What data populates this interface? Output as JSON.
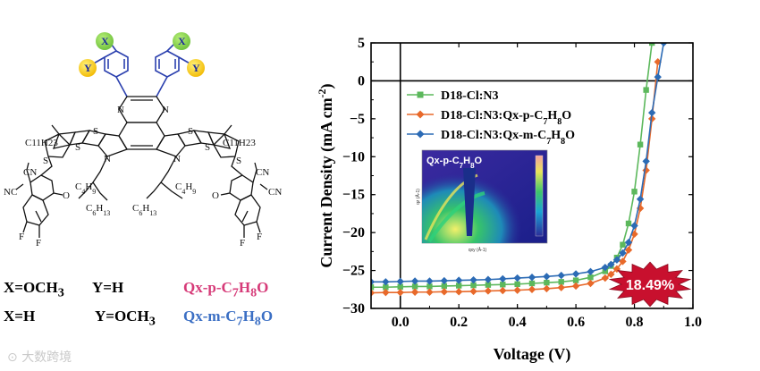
{
  "molecule": {
    "sub_X": "X",
    "sub_Y": "Y",
    "atom_N": "N",
    "atom_S": "S",
    "atom_O": "O",
    "atom_F": "F",
    "atom_CN": "CN",
    "atom_NC": "NC",
    "alkyl_C11H23": "C11H23",
    "alkyl_C4H9": "C4H9",
    "alkyl_C6H13": "C6H13"
  },
  "legend_rows": [
    {
      "x_text": "X=OCH3",
      "y_text": "Y=H",
      "name": "Qx-p-C7H8O"
    },
    {
      "x_text": "X=H",
      "y_text": "Y=OCH3",
      "name": "Qx-m-C7H8O"
    }
  ],
  "watermark": "大数跨境",
  "chart_data": {
    "type": "line",
    "title": "",
    "xlabel": "Voltage (V)",
    "ylabel": "Current Density (mA cm-2)",
    "xlim": [
      -0.1,
      1.0
    ],
    "ylim": [
      -30,
      5
    ],
    "xticks": [
      0.0,
      0.2,
      0.4,
      0.6,
      0.8,
      1.0
    ],
    "yticks": [
      5,
      0,
      -5,
      -10,
      -15,
      -20,
      -25,
      -30
    ],
    "xtick_labels": [
      "0.0",
      "0.2",
      "0.4",
      "0.6",
      "0.8",
      "1.0"
    ],
    "ytick_labels": [
      "5",
      "0",
      "−5",
      "−10",
      "−15",
      "−20",
      "−25",
      "−30"
    ],
    "reference_lines": {
      "x": 0,
      "y": 0
    },
    "legend_position": "top-left",
    "series": [
      {
        "name": "D18-Cl:N3",
        "color": "#5cb85c",
        "marker": "square",
        "x": [
          -0.1,
          -0.05,
          0.0,
          0.05,
          0.1,
          0.15,
          0.2,
          0.25,
          0.3,
          0.35,
          0.4,
          0.45,
          0.5,
          0.55,
          0.6,
          0.65,
          0.7,
          0.72,
          0.74,
          0.76,
          0.78,
          0.8,
          0.82,
          0.84,
          0.86
        ],
        "y": [
          -27.2,
          -27.2,
          -27.15,
          -27.1,
          -27.1,
          -27.05,
          -27.0,
          -26.95,
          -26.9,
          -26.85,
          -26.8,
          -26.7,
          -26.6,
          -26.5,
          -26.3,
          -25.9,
          -25.1,
          -24.4,
          -23.3,
          -21.6,
          -18.8,
          -14.6,
          -8.4,
          -1.2,
          6.0
        ]
      },
      {
        "name": "D18-Cl:N3:Qx-p-C7H8O",
        "color": "#e8692a",
        "marker": "diamond",
        "x": [
          -0.1,
          -0.05,
          0.0,
          0.05,
          0.1,
          0.15,
          0.2,
          0.25,
          0.3,
          0.35,
          0.4,
          0.45,
          0.5,
          0.55,
          0.6,
          0.65,
          0.7,
          0.72,
          0.74,
          0.76,
          0.78,
          0.8,
          0.82,
          0.84,
          0.86,
          0.88
        ],
        "y": [
          -27.95,
          -27.9,
          -27.9,
          -27.85,
          -27.85,
          -27.8,
          -27.8,
          -27.75,
          -27.7,
          -27.65,
          -27.6,
          -27.5,
          -27.4,
          -27.25,
          -27.05,
          -26.7,
          -26.0,
          -25.5,
          -24.8,
          -23.8,
          -22.3,
          -20.2,
          -16.8,
          -11.8,
          -5.0,
          2.5
        ]
      },
      {
        "name": "D18-Cl:N3:Qx-m-C7H8O",
        "color": "#2c6bb5",
        "marker": "diamond",
        "x": [
          -0.1,
          -0.05,
          0.0,
          0.05,
          0.1,
          0.15,
          0.2,
          0.25,
          0.3,
          0.35,
          0.4,
          0.45,
          0.5,
          0.55,
          0.6,
          0.65,
          0.7,
          0.72,
          0.74,
          0.76,
          0.78,
          0.8,
          0.82,
          0.84,
          0.86,
          0.88,
          0.9
        ],
        "y": [
          -26.5,
          -26.5,
          -26.45,
          -26.4,
          -26.4,
          -26.35,
          -26.3,
          -26.25,
          -26.2,
          -26.1,
          -26.0,
          -25.9,
          -25.8,
          -25.65,
          -25.45,
          -25.15,
          -24.6,
          -24.2,
          -23.6,
          -22.7,
          -21.3,
          -19.1,
          -15.6,
          -10.6,
          -4.2,
          0.5,
          6.0
        ]
      }
    ],
    "annotation": "18.49%",
    "inset": {
      "label": "Qx-p-C7H8O",
      "xlabel": "qxy (Å-1)",
      "ylabel": "qz (Å-1)"
    }
  }
}
